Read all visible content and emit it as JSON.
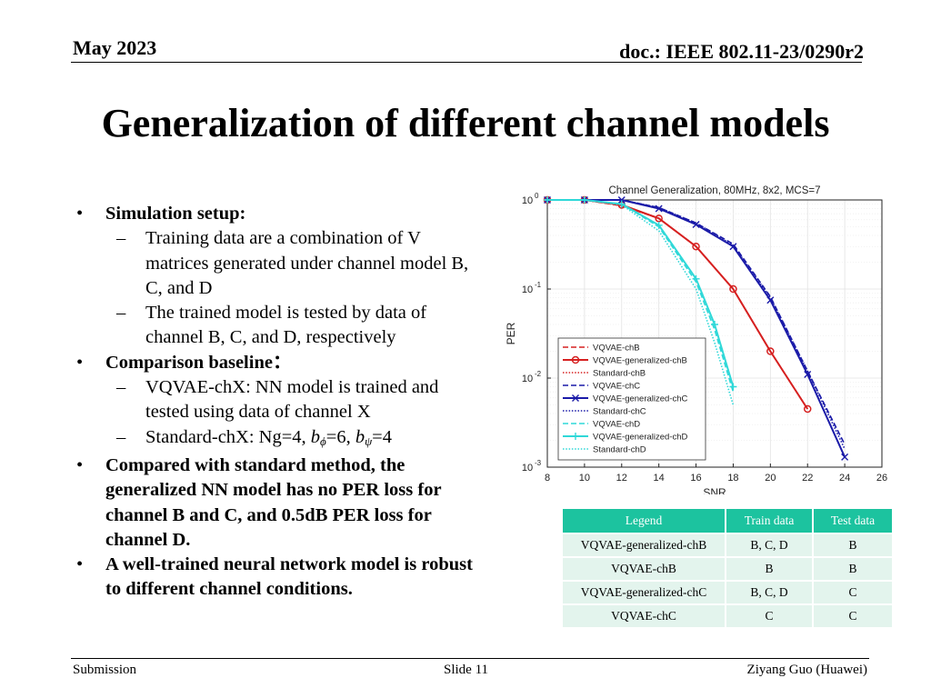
{
  "header": {
    "date": "May 2023",
    "doc": "doc.: IEEE 802.11-23/0290r2"
  },
  "title": "Generalization of different channel models",
  "bullets": {
    "b1": {
      "mark": "•",
      "text": "Simulation setup:"
    },
    "b1_s1": {
      "mark": "–",
      "text": "Training data are a combination of V matrices generated under channel model B, C, and D"
    },
    "b1_s2": {
      "mark": "–",
      "text": "The trained model is tested by data of channel B, C, and D, respectively"
    },
    "b2": {
      "mark": "•",
      "text": "Comparison baseline："
    },
    "b2_s1": {
      "mark": "–",
      "text": "VQVAE-chX: NN model is trained and tested using data of channel X"
    },
    "b2_s2": {
      "mark": "–",
      "pre": "Standard-chX: Ng=4, ",
      "b1": "b",
      "sub1": "ϕ",
      "mid": "=6, ",
      "b2": "b",
      "sub2": "ψ",
      "post": "=4"
    },
    "b3": {
      "mark": "•",
      "text": "Compared with standard method, the generalized NN model has no PER loss for channel B and C, and 0.5dB PER loss for channel D."
    },
    "b4": {
      "mark": "•",
      "text": "A well-trained neural network model is robust to different channel conditions."
    }
  },
  "table": {
    "headers": [
      "Legend",
      "Train data",
      "Test data"
    ],
    "rows": [
      [
        "VQVAE-generalized-chB",
        "B, C, D",
        "B"
      ],
      [
        "VQVAE-chB",
        "B",
        "B"
      ],
      [
        "VQVAE-generalized-chC",
        "B, C, D",
        "C"
      ],
      [
        "VQVAE-chC",
        "C",
        "C"
      ]
    ],
    "header_color": "#1cc39f",
    "cell_color": "#e3f4ed"
  },
  "footer": {
    "left": "Submission",
    "center": "Slide 11",
    "right": "Ziyang Guo (Huawei)"
  },
  "chart_data": {
    "type": "line",
    "title": "Channel Generalization, 80MHz, 8x2, MCS=7",
    "xlabel": "SNR",
    "ylabel": "PER",
    "xlim": [
      8,
      26
    ],
    "ylim": [
      0.001,
      1
    ],
    "yscale": "log",
    "xticks": [
      8,
      10,
      12,
      14,
      16,
      18,
      20,
      22,
      24,
      26
    ],
    "yticks": [
      {
        "value": 1,
        "base": "10",
        "exp": "0"
      },
      {
        "value": 0.1,
        "base": "10",
        "exp": "-1"
      },
      {
        "value": 0.01,
        "base": "10",
        "exp": "-2"
      },
      {
        "value": 0.001,
        "base": "10",
        "exp": "-3"
      }
    ],
    "grid": true,
    "legend_position": "bottom-left",
    "series": [
      {
        "name": "VQVAE-chB",
        "color": "#d62020",
        "dash": "dashed",
        "marker": "none",
        "x": [
          8,
          10,
          12,
          14,
          16,
          18,
          20,
          22
        ],
        "y": [
          1,
          1,
          0.86,
          0.62,
          0.3,
          0.1,
          0.02,
          0.0045
        ]
      },
      {
        "name": "VQVAE-generalized-chB",
        "color": "#d62020",
        "dash": "solid",
        "marker": "circle",
        "x": [
          8,
          10,
          12,
          14,
          16,
          18,
          20,
          22
        ],
        "y": [
          1,
          1,
          0.88,
          0.62,
          0.3,
          0.1,
          0.02,
          0.0045
        ]
      },
      {
        "name": "Standard-chB",
        "color": "#d62020",
        "dash": "dotted",
        "marker": "none",
        "x": [
          8,
          10,
          12,
          14,
          16,
          18,
          20,
          22
        ],
        "y": [
          1,
          1,
          0.86,
          0.62,
          0.3,
          0.1,
          0.02,
          0.0045
        ]
      },
      {
        "name": "VQVAE-chC",
        "color": "#1a1aa8",
        "dash": "dashed",
        "marker": "none",
        "x": [
          8,
          10,
          12,
          14,
          16,
          18,
          20,
          22,
          24
        ],
        "y": [
          1,
          1,
          1,
          0.82,
          0.55,
          0.32,
          0.082,
          0.012,
          0.0018
        ]
      },
      {
        "name": "VQVAE-generalized-chC",
        "color": "#1a1aa8",
        "dash": "solid",
        "marker": "x",
        "x": [
          8,
          10,
          12,
          14,
          16,
          18,
          20,
          22,
          24
        ],
        "y": [
          1,
          1,
          1,
          0.8,
          0.53,
          0.3,
          0.075,
          0.011,
          0.0013
        ]
      },
      {
        "name": "Standard-chC",
        "color": "#1a1aa8",
        "dash": "dotted",
        "marker": "none",
        "x": [
          8,
          10,
          12,
          14,
          16,
          18,
          20,
          22,
          24
        ],
        "y": [
          1,
          1,
          1,
          0.82,
          0.55,
          0.31,
          0.08,
          0.012,
          0.0016
        ]
      },
      {
        "name": "VQVAE-chD",
        "color": "#2fd8d8",
        "dash": "dashed",
        "marker": "none",
        "x": [
          8,
          10,
          12,
          14,
          16,
          17,
          18
        ],
        "y": [
          1,
          1,
          0.9,
          0.5,
          0.12,
          0.035,
          0.007
        ]
      },
      {
        "name": "VQVAE-generalized-chD",
        "color": "#2fd8d8",
        "dash": "solid",
        "marker": "plus",
        "x": [
          8,
          10,
          12,
          14,
          16,
          17,
          18
        ],
        "y": [
          1,
          1,
          0.9,
          0.52,
          0.13,
          0.04,
          0.008
        ]
      },
      {
        "name": "Standard-chD",
        "color": "#2fd8d8",
        "dash": "dotted",
        "marker": "none",
        "x": [
          8,
          10,
          12,
          14,
          16,
          17,
          18
        ],
        "y": [
          1,
          1,
          0.88,
          0.45,
          0.1,
          0.025,
          0.005
        ]
      }
    ]
  }
}
